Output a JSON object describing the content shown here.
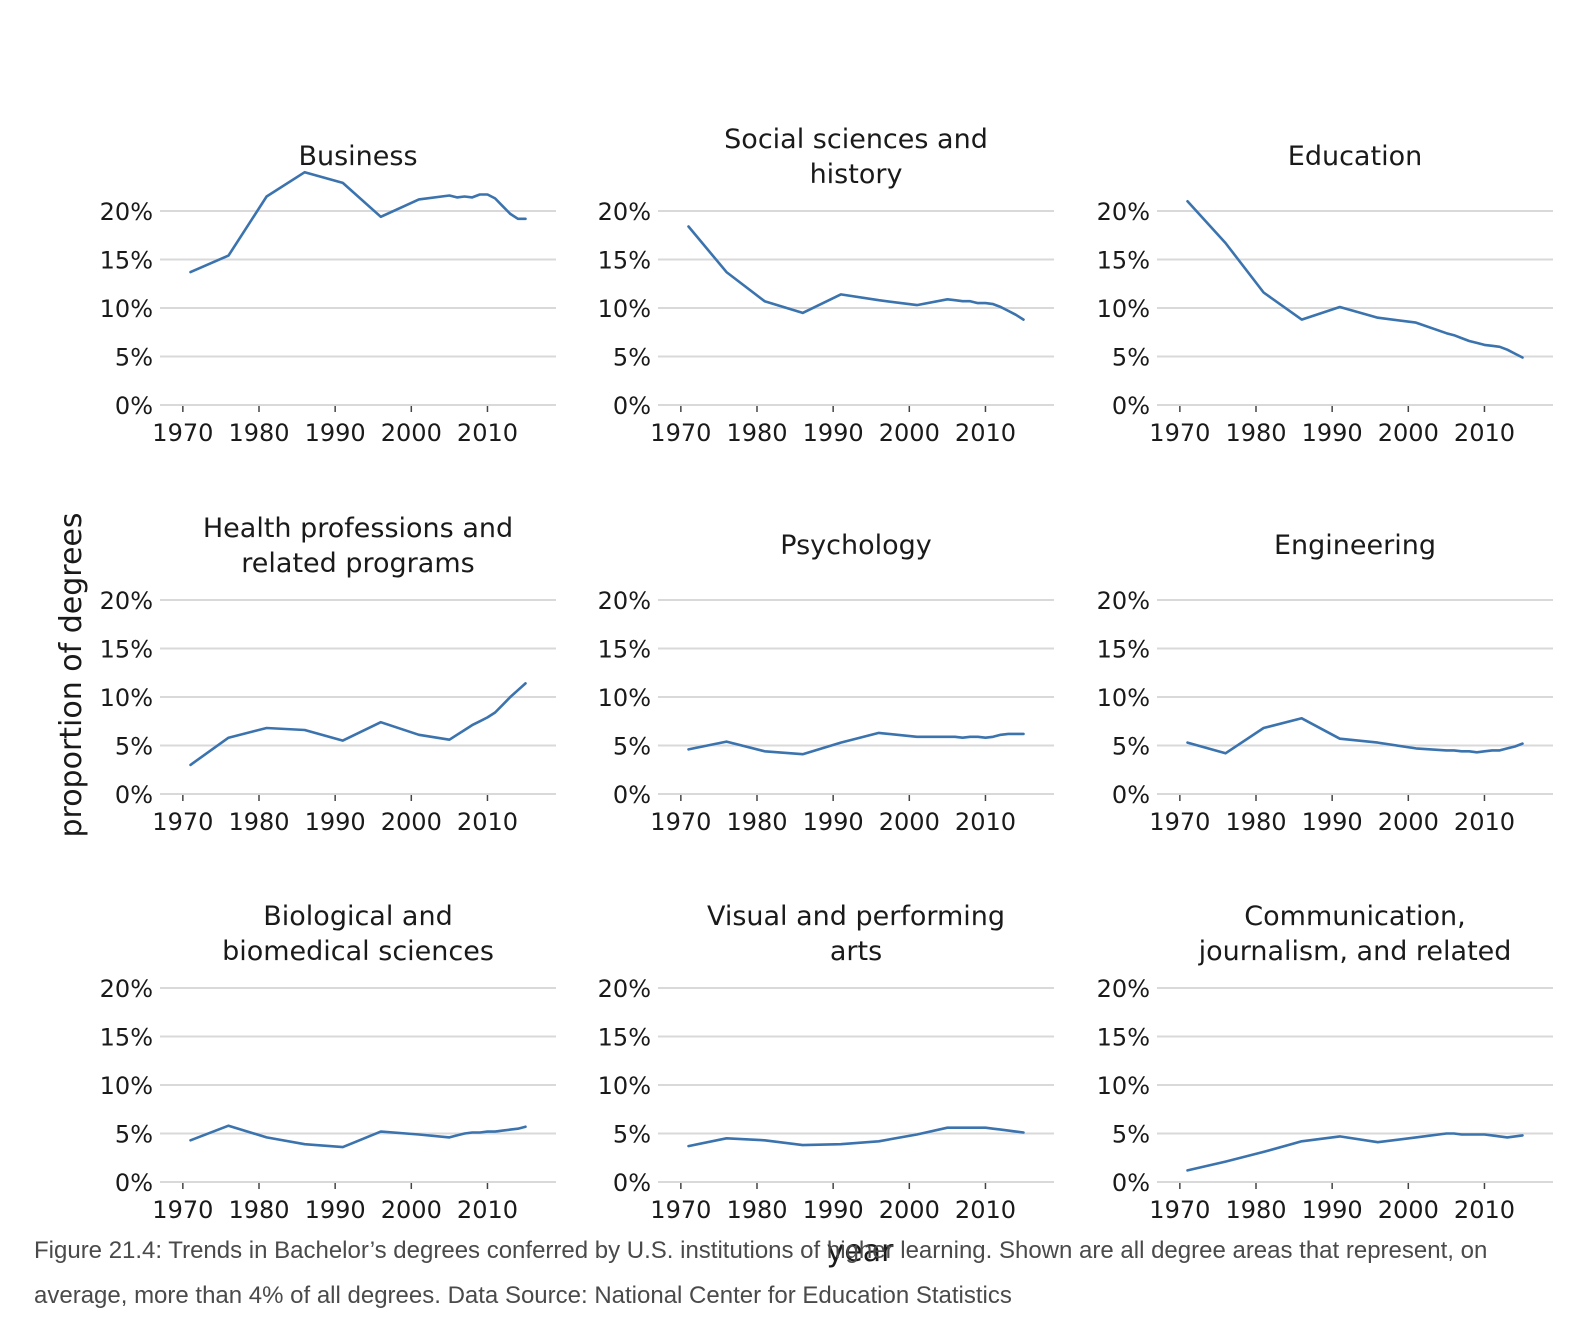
{
  "caption": "Figure 21.4: Trends in Bachelor’s degrees conferred by U.S. institutions of higher learning. Shown are all degree areas that represent, on average, more than 4% of all degrees. Data Source: National Center for Education Statistics",
  "colors": {
    "line": "#3b73ae",
    "grid": "#d9d9d9",
    "text": "#1a1a1a",
    "caption": "#4a4a4a"
  },
  "chart_data": {
    "type": "line",
    "layout": "facet grid, 3 rows x 3 columns, shared axes",
    "xlabel": "year",
    "ylabel": "proportion of degrees",
    "x_ticks": [
      1970,
      1980,
      1990,
      2000,
      2010
    ],
    "x_tick_labels": [
      "1970",
      "1980",
      "1990",
      "2000",
      "2010"
    ],
    "xlim": [
      1967,
      2019
    ],
    "y_ticks": [
      0,
      5,
      10,
      15,
      20
    ],
    "y_tick_labels": [
      "0%",
      "5%",
      "10%",
      "15%",
      "20%"
    ],
    "ylim": [
      0,
      20
    ],
    "grid": "horizontal",
    "legend": "none",
    "panels": [
      {
        "title": [
          "Business"
        ],
        "x": [
          1971,
          1976,
          1981,
          1986,
          1991,
          1996,
          2001,
          2005,
          2006,
          2007,
          2008,
          2009,
          2010,
          2011,
          2012,
          2013,
          2014,
          2015
        ],
        "y": [
          13.7,
          15.4,
          21.5,
          24.0,
          22.9,
          19.4,
          21.2,
          21.6,
          21.4,
          21.5,
          21.4,
          21.7,
          21.7,
          21.3,
          20.5,
          19.7,
          19.2,
          19.2
        ]
      },
      {
        "title": [
          "Social sciences and",
          "history"
        ],
        "x": [
          1971,
          1976,
          1981,
          1986,
          1991,
          1996,
          2001,
          2005,
          2006,
          2007,
          2008,
          2009,
          2010,
          2011,
          2012,
          2013,
          2014,
          2015
        ],
        "y": [
          18.4,
          13.7,
          10.7,
          9.5,
          11.4,
          10.8,
          10.3,
          10.9,
          10.8,
          10.7,
          10.7,
          10.5,
          10.5,
          10.4,
          10.1,
          9.7,
          9.3,
          8.8
        ]
      },
      {
        "title": [
          "Education"
        ],
        "x": [
          1971,
          1976,
          1981,
          1986,
          1991,
          1996,
          2001,
          2005,
          2006,
          2007,
          2008,
          2009,
          2010,
          2011,
          2012,
          2013,
          2014,
          2015
        ],
        "y": [
          21.0,
          16.7,
          11.6,
          8.8,
          10.1,
          9.0,
          8.5,
          7.4,
          7.2,
          6.9,
          6.6,
          6.4,
          6.2,
          6.1,
          6.0,
          5.7,
          5.3,
          4.9
        ]
      },
      {
        "title": [
          "Health professions and",
          "related programs"
        ],
        "x": [
          1971,
          1976,
          1981,
          1986,
          1991,
          1996,
          2001,
          2005,
          2006,
          2007,
          2008,
          2009,
          2010,
          2011,
          2012,
          2013,
          2014,
          2015
        ],
        "y": [
          3.0,
          5.8,
          6.8,
          6.6,
          5.5,
          7.4,
          6.1,
          5.6,
          6.1,
          6.6,
          7.1,
          7.5,
          7.9,
          8.4,
          9.2,
          10.0,
          10.7,
          11.4
        ]
      },
      {
        "title": [
          "Psychology"
        ],
        "x": [
          1971,
          1976,
          1981,
          1986,
          1991,
          1996,
          2001,
          2005,
          2006,
          2007,
          2008,
          2009,
          2010,
          2011,
          2012,
          2013,
          2014,
          2015
        ],
        "y": [
          4.6,
          5.4,
          4.4,
          4.1,
          5.3,
          6.3,
          5.9,
          5.9,
          5.9,
          5.8,
          5.9,
          5.9,
          5.8,
          5.9,
          6.1,
          6.2,
          6.2,
          6.2
        ]
      },
      {
        "title": [
          "Engineering"
        ],
        "x": [
          1971,
          1976,
          1981,
          1986,
          1991,
          1996,
          2001,
          2005,
          2006,
          2007,
          2008,
          2009,
          2010,
          2011,
          2012,
          2013,
          2014,
          2015
        ],
        "y": [
          5.3,
          4.2,
          6.8,
          7.8,
          5.7,
          5.3,
          4.7,
          4.5,
          4.5,
          4.4,
          4.4,
          4.3,
          4.4,
          4.5,
          4.5,
          4.7,
          4.9,
          5.2
        ]
      },
      {
        "title": [
          "Biological and",
          "biomedical sciences"
        ],
        "x": [
          1971,
          1976,
          1981,
          1986,
          1991,
          1996,
          2001,
          2005,
          2006,
          2007,
          2008,
          2009,
          2010,
          2011,
          2012,
          2013,
          2014,
          2015
        ],
        "y": [
          4.3,
          5.8,
          4.6,
          3.9,
          3.6,
          5.2,
          4.9,
          4.6,
          4.8,
          5.0,
          5.1,
          5.1,
          5.2,
          5.2,
          5.3,
          5.4,
          5.5,
          5.7
        ]
      },
      {
        "title": [
          "Visual and performing",
          "arts"
        ],
        "x": [
          1971,
          1976,
          1981,
          1986,
          1991,
          1996,
          2001,
          2005,
          2006,
          2007,
          2008,
          2009,
          2010,
          2011,
          2012,
          2013,
          2014,
          2015
        ],
        "y": [
          3.7,
          4.5,
          4.3,
          3.8,
          3.9,
          4.2,
          4.9,
          5.6,
          5.6,
          5.6,
          5.6,
          5.6,
          5.6,
          5.5,
          5.4,
          5.3,
          5.2,
          5.1
        ]
      },
      {
        "title": [
          "Communication,",
          "journalism, and related"
        ],
        "x": [
          1971,
          1976,
          1981,
          1986,
          1991,
          1996,
          2001,
          2005,
          2006,
          2007,
          2008,
          2009,
          2010,
          2011,
          2012,
          2013,
          2014,
          2015
        ],
        "y": [
          1.2,
          2.1,
          3.1,
          4.2,
          4.7,
          4.1,
          4.6,
          5.0,
          5.0,
          4.9,
          4.9,
          4.9,
          4.9,
          4.8,
          4.7,
          4.6,
          4.7,
          4.8
        ]
      }
    ]
  }
}
